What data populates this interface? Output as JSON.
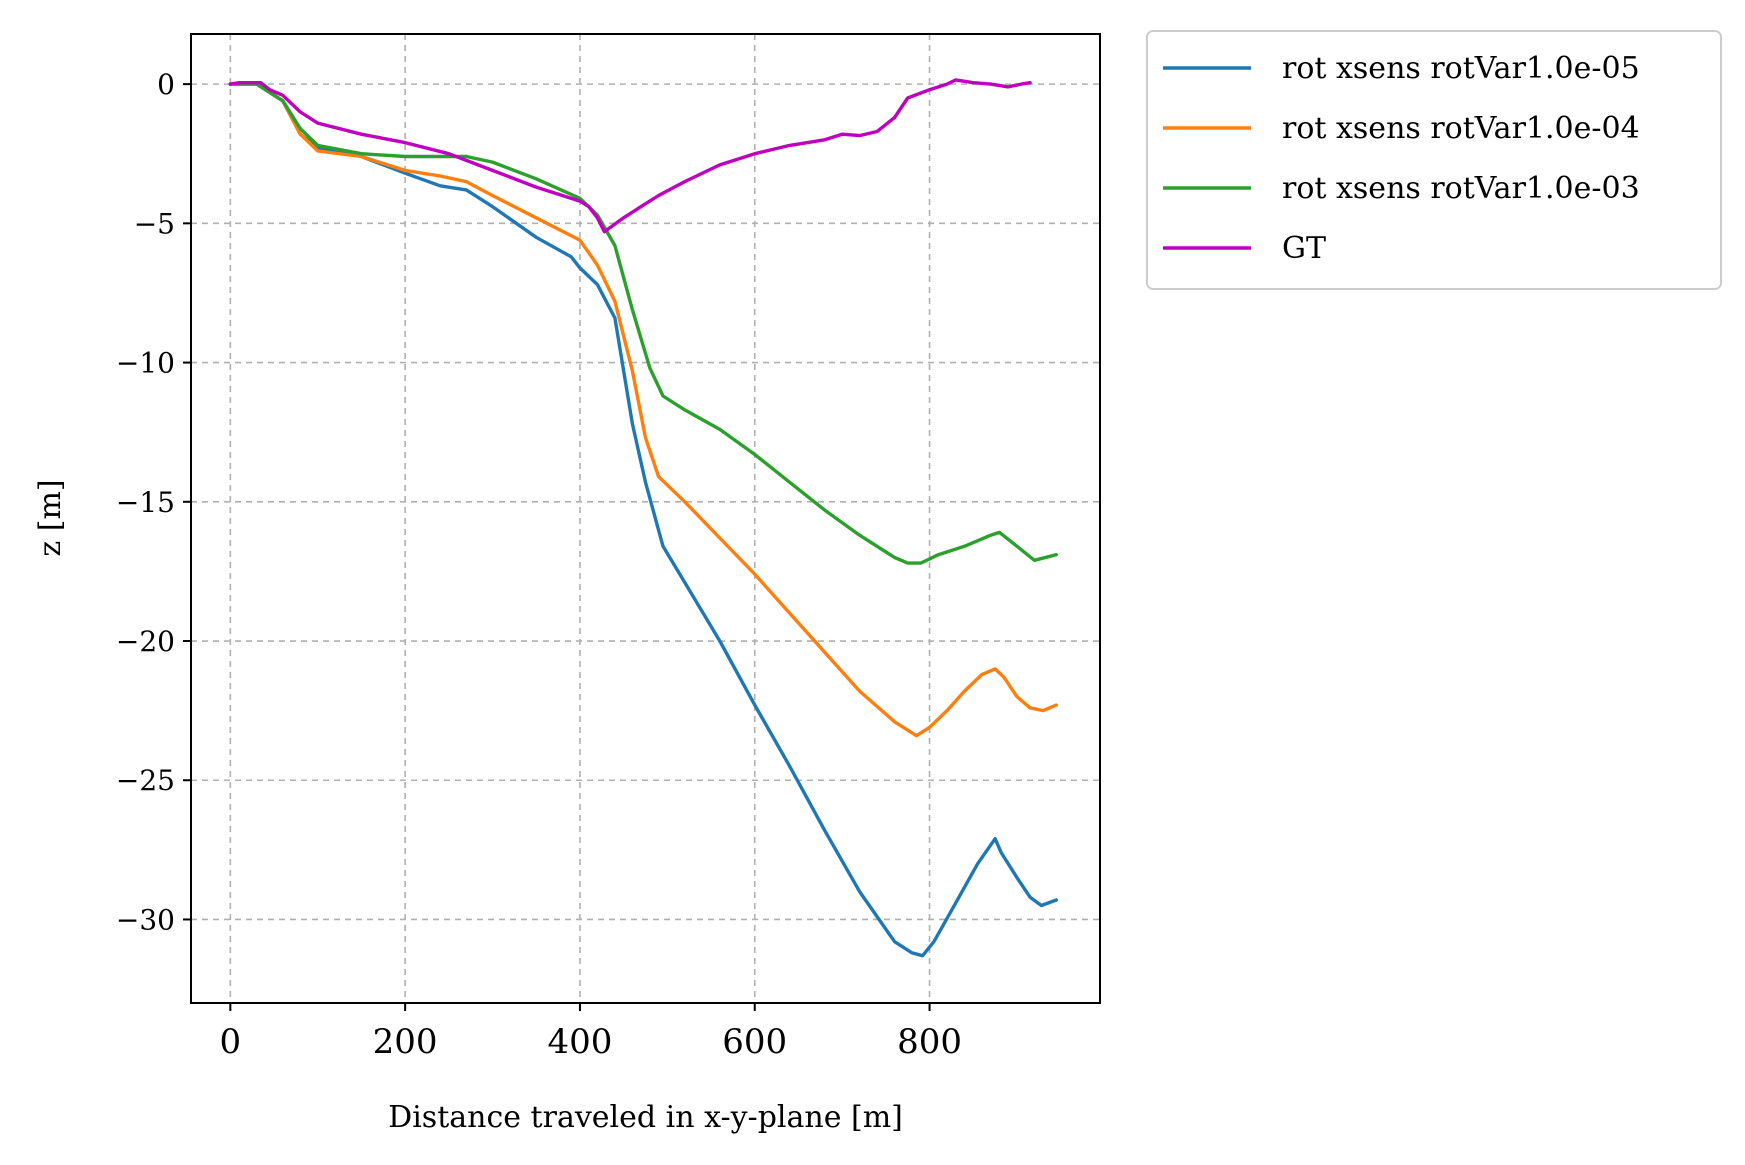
{
  "chart_data": {
    "type": "line",
    "title": "",
    "xlabel": "Distance traveled in x-y-plane [m]",
    "ylabel": "z [m]",
    "xlim": [
      -45,
      995
    ],
    "ylim": [
      -33.0,
      1.8
    ],
    "x_ticks": [
      0,
      200,
      400,
      600,
      800
    ],
    "x_tick_labels": [
      "0",
      "200",
      "400",
      "600",
      "800"
    ],
    "y_ticks": [
      0,
      -5,
      -10,
      -15,
      -20,
      -25,
      -30
    ],
    "y_tick_labels": [
      "0",
      "−5",
      "−10",
      "−15",
      "−20",
      "−25",
      "−30"
    ],
    "grid": true,
    "legend_placement": "outside-top-right",
    "series": [
      {
        "name": "rot xsens rotVar1.0e-05",
        "color": "#1f77b4",
        "x": [
          0,
          30,
          60,
          80,
          100,
          150,
          200,
          240,
          270,
          300,
          350,
          390,
          400,
          420,
          440,
          460,
          475,
          495,
          520,
          560,
          600,
          640,
          680,
          720,
          760,
          780,
          792,
          805,
          830,
          855,
          875,
          882,
          900,
          915,
          928,
          945
        ],
        "y": [
          0,
          0,
          -0.6,
          -1.8,
          -2.3,
          -2.6,
          -3.2,
          -3.65,
          -3.8,
          -4.4,
          -5.5,
          -6.2,
          -6.6,
          -7.2,
          -8.4,
          -12.2,
          -14.3,
          -16.6,
          -17.9,
          -20.0,
          -22.3,
          -24.5,
          -26.8,
          -29.0,
          -30.8,
          -31.2,
          -31.3,
          -30.8,
          -29.4,
          -28.0,
          -27.1,
          -27.6,
          -28.5,
          -29.2,
          -29.5,
          -29.3
        ]
      },
      {
        "name": "rot xsens rotVar1.0e-04",
        "color": "#ff7f0e",
        "x": [
          0,
          30,
          60,
          80,
          100,
          150,
          200,
          240,
          270,
          300,
          350,
          400,
          420,
          440,
          460,
          475,
          490,
          520,
          560,
          600,
          640,
          680,
          720,
          760,
          785,
          800,
          820,
          840,
          860,
          875,
          885,
          900,
          915,
          930,
          945
        ],
        "y": [
          0,
          0,
          -0.6,
          -1.8,
          -2.4,
          -2.6,
          -3.1,
          -3.3,
          -3.5,
          -4.0,
          -4.8,
          -5.6,
          -6.5,
          -7.8,
          -10.3,
          -12.7,
          -14.1,
          -15.0,
          -16.3,
          -17.6,
          -19.0,
          -20.4,
          -21.8,
          -22.9,
          -23.4,
          -23.1,
          -22.5,
          -21.8,
          -21.2,
          -21.0,
          -21.3,
          -22.0,
          -22.4,
          -22.5,
          -22.3
        ]
      },
      {
        "name": "rot xsens rotVar1.0e-03",
        "color": "#2ca02c",
        "x": [
          0,
          30,
          60,
          80,
          100,
          150,
          200,
          240,
          270,
          300,
          350,
          400,
          420,
          440,
          460,
          480,
          495,
          520,
          560,
          600,
          640,
          680,
          720,
          760,
          775,
          790,
          810,
          840,
          870,
          880,
          900,
          920,
          945
        ],
        "y": [
          0,
          0,
          -0.6,
          -1.6,
          -2.2,
          -2.5,
          -2.6,
          -2.6,
          -2.6,
          -2.8,
          -3.4,
          -4.1,
          -4.7,
          -5.8,
          -8.1,
          -10.2,
          -11.2,
          -11.7,
          -12.4,
          -13.3,
          -14.3,
          -15.3,
          -16.2,
          -17.0,
          -17.2,
          -17.2,
          -16.9,
          -16.6,
          -16.2,
          -16.1,
          -16.6,
          -17.1,
          -16.9
        ]
      },
      {
        "name": "GT",
        "color": "#bf00bf",
        "x": [
          0,
          10,
          35,
          45,
          60,
          80,
          100,
          150,
          200,
          250,
          300,
          350,
          400,
          410,
          420,
          428,
          450,
          470,
          490,
          520,
          560,
          600,
          640,
          680,
          700,
          720,
          740,
          760,
          775,
          800,
          820,
          830,
          850,
          870,
          890,
          905,
          915
        ],
        "y": [
          0,
          0.05,
          0.05,
          -0.2,
          -0.4,
          -1.0,
          -1.4,
          -1.8,
          -2.1,
          -2.5,
          -3.1,
          -3.7,
          -4.2,
          -4.4,
          -4.8,
          -5.3,
          -4.8,
          -4.4,
          -4.0,
          -3.5,
          -2.9,
          -2.5,
          -2.2,
          -2.0,
          -1.8,
          -1.85,
          -1.7,
          -1.2,
          -0.5,
          -0.2,
          0.0,
          0.15,
          0.05,
          0.0,
          -0.1,
          0.0,
          0.05
        ]
      }
    ]
  }
}
